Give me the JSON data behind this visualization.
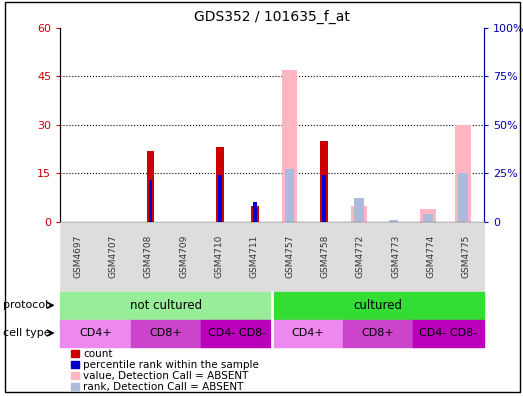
{
  "title": "GDS352 / 101635_f_at",
  "samples": [
    "GSM4697",
    "GSM4707",
    "GSM4708",
    "GSM4709",
    "GSM4710",
    "GSM4711",
    "GSM4757",
    "GSM4758",
    "GSM4772",
    "GSM4773",
    "GSM4774",
    "GSM4775"
  ],
  "count_values": [
    0,
    0,
    22,
    0,
    23,
    5,
    0,
    25,
    0,
    0,
    0,
    0
  ],
  "percentile_values": [
    0,
    0,
    13,
    0,
    14.5,
    6,
    0,
    14.5,
    0,
    0,
    0,
    0
  ],
  "absent_value": [
    0,
    0,
    0,
    0,
    0,
    0,
    47,
    0,
    5,
    0,
    4,
    30
  ],
  "absent_rank": [
    0,
    0,
    0,
    0,
    0,
    0,
    27,
    0,
    12,
    1,
    4,
    25
  ],
  "ylim_left": [
    0,
    60
  ],
  "ylim_right": [
    0,
    100
  ],
  "yticks_left": [
    0,
    15,
    30,
    45,
    60
  ],
  "ytick_labels_left": [
    "0",
    "15",
    "30",
    "45",
    "60"
  ],
  "yticks_right": [
    0,
    25,
    50,
    75,
    100
  ],
  "ytick_labels_right": [
    "0",
    "25%",
    "50%",
    "75%",
    "100%"
  ],
  "protocol_groups": [
    {
      "label": "not cultured",
      "start": 0,
      "end": 6,
      "color": "#98EE98"
    },
    {
      "label": "cultured",
      "start": 6,
      "end": 12,
      "color": "#33DD33"
    }
  ],
  "cell_type_groups": [
    {
      "label": "CD4+",
      "start": 0,
      "end": 2,
      "color": "#EE88EE"
    },
    {
      "label": "CD8+",
      "start": 2,
      "end": 4,
      "color": "#CC44CC"
    },
    {
      "label": "CD4- CD8-",
      "start": 4,
      "end": 6,
      "color": "#BB00BB"
    },
    {
      "label": "CD4+",
      "start": 6,
      "end": 8,
      "color": "#EE88EE"
    },
    {
      "label": "CD8+",
      "start": 8,
      "end": 10,
      "color": "#CC44CC"
    },
    {
      "label": "CD4- CD8-",
      "start": 10,
      "end": 12,
      "color": "#BB00BB"
    }
  ],
  "count_color": "#CC0000",
  "percentile_color": "#0000CC",
  "absent_value_color": "#FFB6C1",
  "absent_rank_color": "#AABBDD",
  "legend_items": [
    {
      "label": "count",
      "color": "#CC0000"
    },
    {
      "label": "percentile rank within the sample",
      "color": "#0000CC"
    },
    {
      "label": "value, Detection Call = ABSENT",
      "color": "#FFB6C1"
    },
    {
      "label": "rank, Detection Call = ABSENT",
      "color": "#AABBDD"
    }
  ],
  "label_color_left": "#CC0000",
  "label_color_right": "#0000AA"
}
